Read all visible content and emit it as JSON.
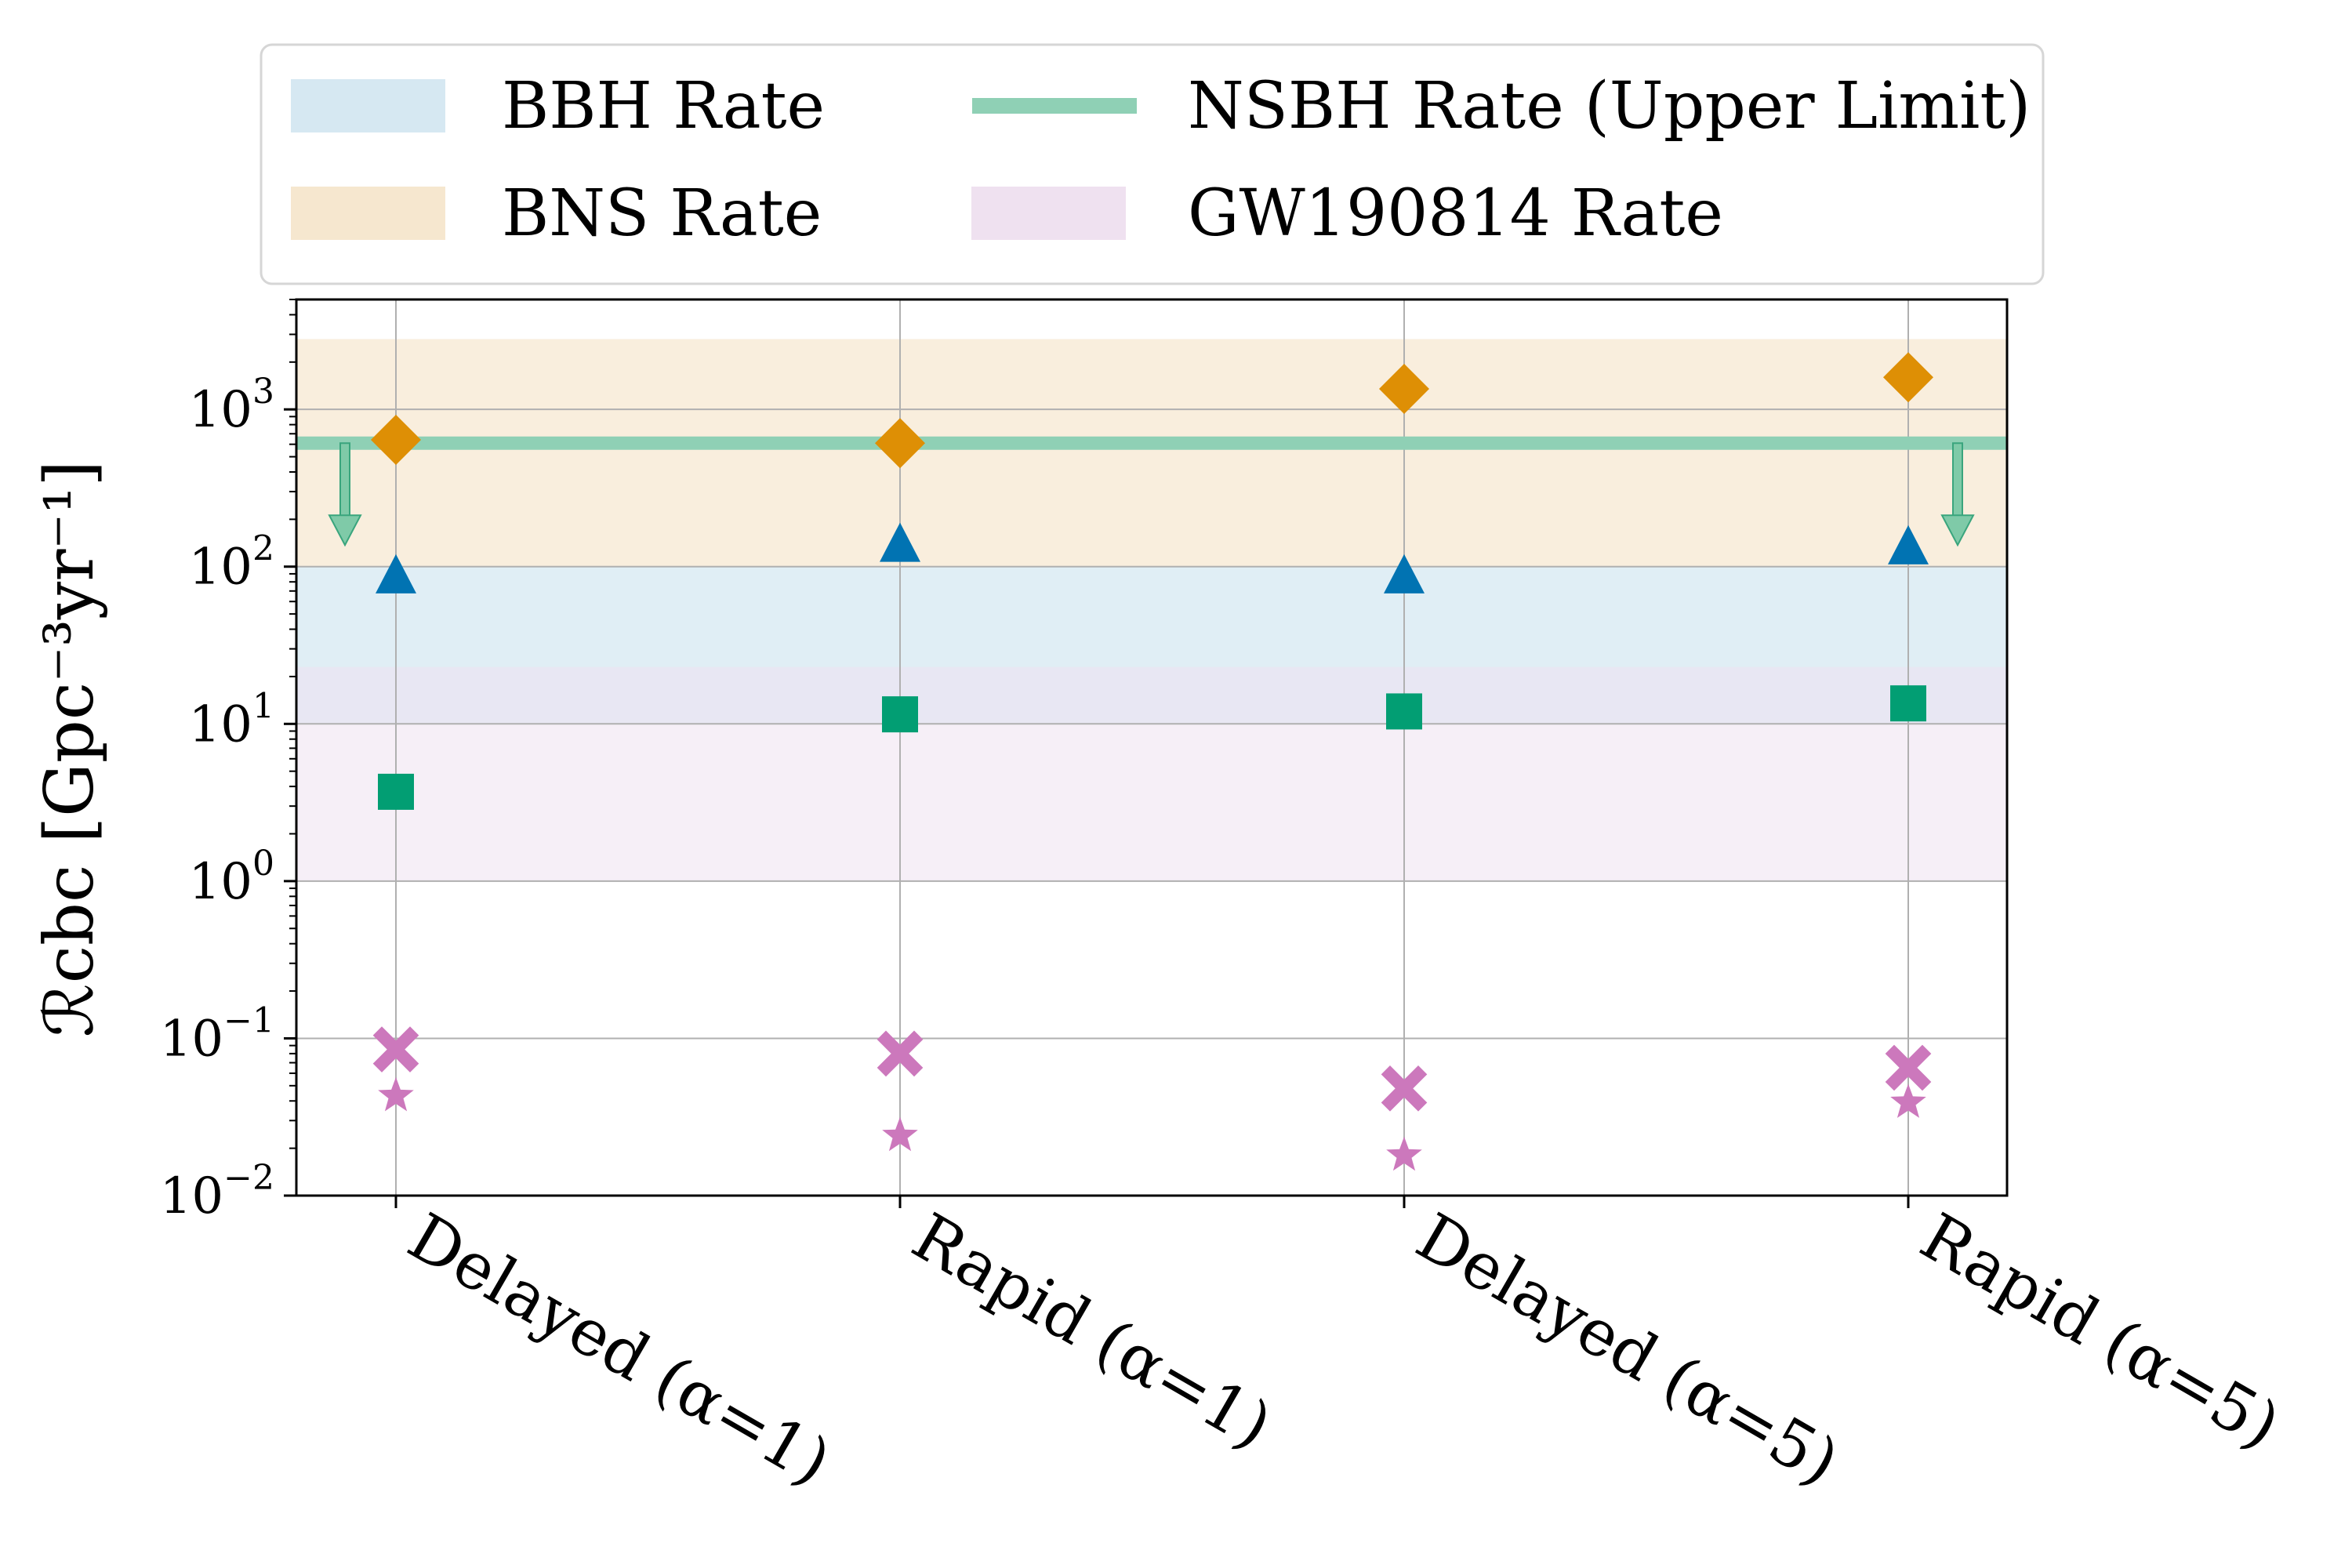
{
  "chart_data": {
    "type": "scatter",
    "categories": [
      "Delayed (α=1)",
      "Rapid (α=1)",
      "Delayed (α=5)",
      "Rapid (α=5)"
    ],
    "yscale": "log",
    "ylim": [
      0.01,
      5000
    ],
    "ylabel": "ℛcbc [Gpc⁻³yr⁻¹]",
    "yticks": [
      {
        "value": 0.01,
        "base": "10",
        "exp": "−2"
      },
      {
        "value": 0.1,
        "base": "10",
        "exp": "−1"
      },
      {
        "value": 1,
        "base": "10",
        "exp": "0"
      },
      {
        "value": 10,
        "base": "10",
        "exp": "1"
      },
      {
        "value": 100,
        "base": "10",
        "exp": "2"
      },
      {
        "value": 1000,
        "base": "10",
        "exp": "3"
      }
    ],
    "grid": true,
    "legend_position": "top (above plot)",
    "bands": [
      {
        "label": "BBH Rate",
        "range": [
          10,
          100
        ],
        "color": "#d6e8f2",
        "opacity": 0.75
      },
      {
        "label": "BNS Rate",
        "range": [
          100,
          2800
        ],
        "color": "#f6e7cf",
        "opacity": 0.7
      },
      {
        "label": "GW190814 Rate",
        "range": [
          1,
          23
        ],
        "color": "#efe1f0",
        "opacity": 0.55
      }
    ],
    "line": {
      "label": "NSBH Rate (Upper Limit)",
      "value": 610,
      "color": "#8fd0b5"
    },
    "series": [
      {
        "marker": "diamond",
        "color": "#de8f05",
        "values": [
          640,
          610,
          1350,
          1600
        ]
      },
      {
        "marker": "triangle",
        "color": "#0173b2",
        "values": [
          85,
          135,
          85,
          130
        ]
      },
      {
        "marker": "square",
        "color": "#029e73",
        "values": [
          3.7,
          11.5,
          12,
          13.5
        ]
      },
      {
        "marker": "x",
        "color": "#cc78bc",
        "values": [
          0.085,
          0.08,
          0.048,
          0.065
        ]
      },
      {
        "marker": "star",
        "color": "#cc78bc",
        "values": [
          0.043,
          0.024,
          0.018,
          0.039
        ]
      }
    ],
    "legend": [
      {
        "label": "BBH Rate",
        "kind": "band",
        "color": "#d6e8f2"
      },
      {
        "label": "NSBH Rate (Upper Limit)",
        "kind": "line",
        "color": "#8fd0b5"
      },
      {
        "label": "BNS Rate",
        "kind": "band",
        "color": "#f6e7cf"
      },
      {
        "label": "GW190814 Rate",
        "kind": "band",
        "color": "#efe1f0"
      }
    ]
  }
}
